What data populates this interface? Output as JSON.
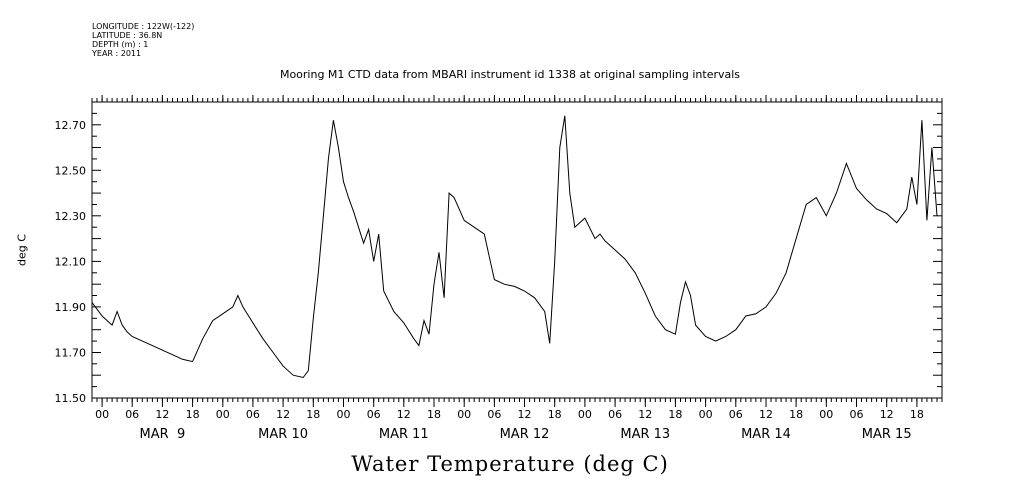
{
  "meta": {
    "longitude": "LONGITUDE : 122W(-122)",
    "latitude": "LATITUDE : 36.8N",
    "depth": "DEPTH (m) : 1",
    "year": "YEAR : 2011"
  },
  "chart_data": {
    "type": "line",
    "title": "Mooring M1 CTD data from MBARI instrument id 1338 at original sampling intervals",
    "xlabel": "Water Temperature (deg C)",
    "ylabel": "deg C",
    "ylim": [
      11.5,
      12.8
    ],
    "yticks": [
      "11.50",
      "11.70",
      "11.90",
      "12.10",
      "12.30",
      "12.50",
      "12.70"
    ],
    "xlim": [
      "2011-03-08T22:00",
      "2011-03-15T23:00"
    ],
    "hour_ticks": [
      "00",
      "06",
      "12",
      "18"
    ],
    "day_labels": [
      "MAR  9",
      "MAR 10",
      "MAR 11",
      "MAR 12",
      "MAR 13",
      "MAR 14",
      "MAR 15"
    ],
    "grid": false,
    "series": [
      {
        "x": [
          "2011-03-08T22:00",
          "2011-03-09T00:00",
          "2011-03-09T02:00",
          "2011-03-09T03:00",
          "2011-03-09T04:00",
          "2011-03-09T05:00",
          "2011-03-09T06:00",
          "2011-03-09T08:00",
          "2011-03-09T10:00",
          "2011-03-09T12:00",
          "2011-03-09T14:00",
          "2011-03-09T16:00",
          "2011-03-09T18:00",
          "2011-03-09T20:00",
          "2011-03-09T22:00",
          "2011-03-10T00:00",
          "2011-03-10T02:00",
          "2011-03-10T03:00",
          "2011-03-10T04:00",
          "2011-03-10T06:00",
          "2011-03-10T08:00",
          "2011-03-10T10:00",
          "2011-03-10T12:00",
          "2011-03-10T14:00",
          "2011-03-10T16:00",
          "2011-03-10T17:00",
          "2011-03-10T18:00",
          "2011-03-10T19:00",
          "2011-03-10T20:00",
          "2011-03-10T21:00",
          "2011-03-10T22:00",
          "2011-03-10T23:00",
          "2011-03-11T00:00",
          "2011-03-11T01:00",
          "2011-03-11T02:00",
          "2011-03-11T04:00",
          "2011-03-11T05:00",
          "2011-03-11T06:00",
          "2011-03-11T07:00",
          "2011-03-11T08:00",
          "2011-03-11T10:00",
          "2011-03-11T12:00",
          "2011-03-11T14:00",
          "2011-03-11T15:00",
          "2011-03-11T16:00",
          "2011-03-11T17:00",
          "2011-03-11T18:00",
          "2011-03-11T19:00",
          "2011-03-11T20:00",
          "2011-03-11T21:00",
          "2011-03-11T22:00",
          "2011-03-12T00:00",
          "2011-03-12T02:00",
          "2011-03-12T04:00",
          "2011-03-12T05:00",
          "2011-03-12T06:00",
          "2011-03-12T08:00",
          "2011-03-12T10:00",
          "2011-03-12T12:00",
          "2011-03-12T14:00",
          "2011-03-12T16:00",
          "2011-03-12T17:00",
          "2011-03-12T18:00",
          "2011-03-12T19:00",
          "2011-03-12T20:00",
          "2011-03-12T21:00",
          "2011-03-12T22:00",
          "2011-03-13T00:00",
          "2011-03-13T02:00",
          "2011-03-13T03:00",
          "2011-03-13T04:00",
          "2011-03-13T06:00",
          "2011-03-13T08:00",
          "2011-03-13T10:00",
          "2011-03-13T12:00",
          "2011-03-13T14:00",
          "2011-03-13T16:00",
          "2011-03-13T18:00",
          "2011-03-13T19:00",
          "2011-03-13T20:00",
          "2011-03-13T21:00",
          "2011-03-13T22:00",
          "2011-03-14T00:00",
          "2011-03-14T02:00",
          "2011-03-14T04:00",
          "2011-03-14T06:00",
          "2011-03-14T08:00",
          "2011-03-14T10:00",
          "2011-03-14T12:00",
          "2011-03-14T14:00",
          "2011-03-14T16:00",
          "2011-03-14T18:00",
          "2011-03-14T20:00",
          "2011-03-14T22:00",
          "2011-03-15T00:00",
          "2011-03-15T02:00",
          "2011-03-15T04:00",
          "2011-03-15T06:00",
          "2011-03-15T08:00",
          "2011-03-15T10:00",
          "2011-03-15T12:00",
          "2011-03-15T14:00",
          "2011-03-15T16:00",
          "2011-03-15T17:00",
          "2011-03-15T18:00",
          "2011-03-15T19:00",
          "2011-03-15T20:00",
          "2011-03-15T21:00",
          "2011-03-15T22:00"
        ],
        "values": [
          11.92,
          11.86,
          11.82,
          11.88,
          11.82,
          11.79,
          11.77,
          11.75,
          11.73,
          11.71,
          11.69,
          11.67,
          11.66,
          11.76,
          11.84,
          11.87,
          11.9,
          11.95,
          11.9,
          11.83,
          11.76,
          11.7,
          11.64,
          11.6,
          11.59,
          11.62,
          11.85,
          12.05,
          12.3,
          12.55,
          12.72,
          12.6,
          12.45,
          12.38,
          12.32,
          12.18,
          12.24,
          12.1,
          12.22,
          11.97,
          11.88,
          11.83,
          11.76,
          11.73,
          11.84,
          11.78,
          12.0,
          12.14,
          11.94,
          12.4,
          12.38,
          12.28,
          12.25,
          12.22,
          12.12,
          12.02,
          12.0,
          11.99,
          11.97,
          11.94,
          11.88,
          11.74,
          12.1,
          12.6,
          12.74,
          12.4,
          12.25,
          12.29,
          12.2,
          12.22,
          12.19,
          12.15,
          12.11,
          12.05,
          11.96,
          11.86,
          11.8,
          11.78,
          11.92,
          12.01,
          11.95,
          11.82,
          11.77,
          11.75,
          11.77,
          11.8,
          11.86,
          11.87,
          11.9,
          11.96,
          12.05,
          12.2,
          12.35,
          12.38,
          12.3,
          12.4,
          12.53,
          12.42,
          12.37,
          12.33,
          12.31,
          12.27,
          12.33,
          12.47,
          12.35,
          12.72,
          12.28,
          12.6,
          12.3
        ]
      }
    ]
  }
}
